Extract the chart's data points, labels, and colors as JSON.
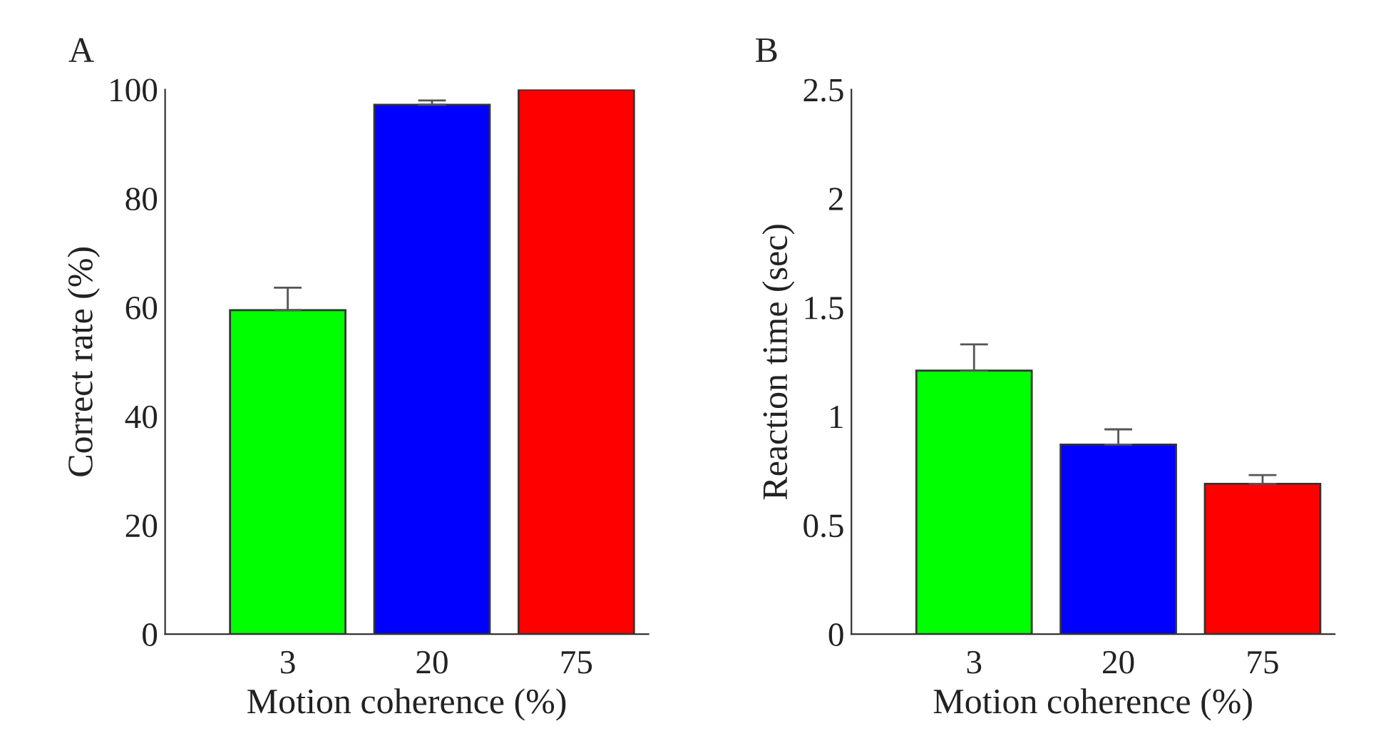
{
  "chart_data": [
    {
      "type": "bar",
      "title": "A",
      "xlabel": "Motion coherence (%)",
      "ylabel": "Correct rate (%)",
      "categories": [
        "3",
        "20",
        "75"
      ],
      "values": [
        59.5,
        97.2,
        100
      ],
      "colors": [
        "#00ff00",
        "#0000ff",
        "#ff0000"
      ],
      "errors": [
        [
          59.5,
          63.6
        ],
        [
          97.2,
          98
        ],
        null
      ],
      "ylim": [
        0,
        100
      ],
      "yticks": [
        0,
        20,
        40,
        60,
        80,
        100
      ],
      "grid": false,
      "legend": false
    },
    {
      "type": "bar",
      "title": "B",
      "xlabel": "Motion coherence (%)",
      "ylabel": "Reaction time (sec)",
      "categories": [
        "3",
        "20",
        "75"
      ],
      "values": [
        1.21,
        0.87,
        0.69
      ],
      "colors": [
        "#00ff00",
        "#0000ff",
        "#ff0000"
      ],
      "errors": [
        [
          1.21,
          1.33
        ],
        [
          0.87,
          0.94
        ],
        [
          0.69,
          0.73
        ]
      ],
      "ylim": [
        0,
        2.5
      ],
      "yticks": [
        0,
        0.5,
        1,
        1.5,
        2,
        2.5
      ],
      "grid": false,
      "legend": false
    }
  ]
}
